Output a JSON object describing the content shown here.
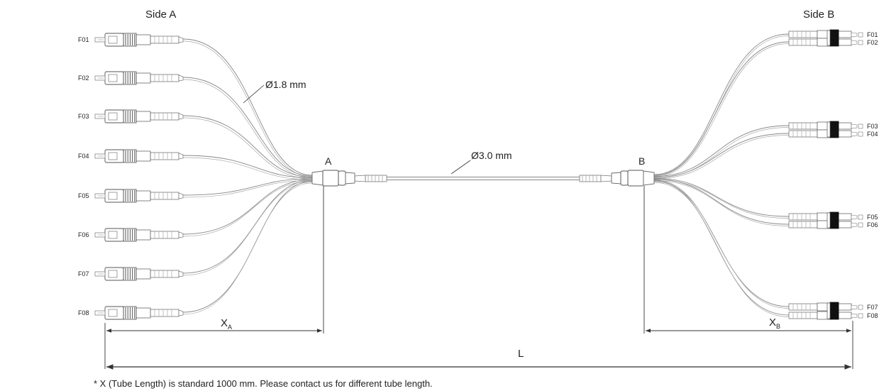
{
  "side_a": {
    "title": "Side A",
    "ports": [
      "F01",
      "F02",
      "F03",
      "F04",
      "F05",
      "F06",
      "F07",
      "F08"
    ],
    "fanout_label": "A"
  },
  "side_b": {
    "title": "Side B",
    "ports": [
      "F01",
      "F02",
      "F03",
      "F04",
      "F05",
      "F06",
      "F07",
      "F08"
    ],
    "fanout_label": "B"
  },
  "callouts": {
    "breakout_diameter": "Ø1.8 mm",
    "trunk_diameter": "Ø3.0 mm"
  },
  "dimensions": {
    "xa": {
      "main": "X",
      "sub": "A"
    },
    "xb": {
      "main": "X",
      "sub": "B"
    },
    "total": "L"
  },
  "footnote": "* X (Tube Length) is standard 1000 mm. Please contact us for different tube length."
}
